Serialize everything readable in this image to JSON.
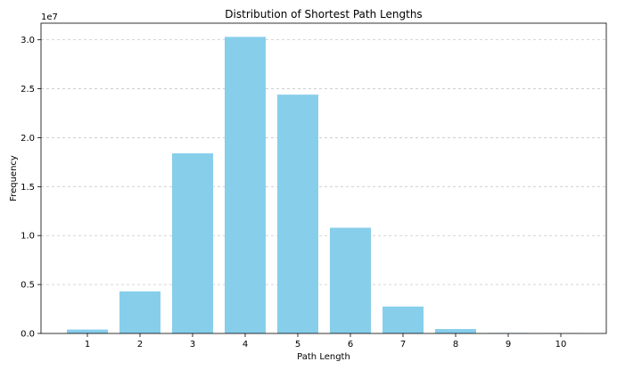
{
  "colors": {
    "bar": "#87CEEB",
    "grid": "#c8c8c8",
    "axis": "#000000"
  },
  "chart_data": {
    "type": "bar",
    "title": "Distribution of Shortest Path Lengths",
    "xlabel": "Path Length",
    "ylabel": "Frequency",
    "y_offset_label": "1e7",
    "categories": [
      "1",
      "2",
      "3",
      "4",
      "5",
      "6",
      "7",
      "8",
      "9",
      "10"
    ],
    "values": [
      400000,
      4300000,
      18400000,
      30300000,
      24400000,
      10800000,
      2750000,
      450000,
      50000,
      5000
    ],
    "ylim": [
      0,
      31700000
    ],
    "yticks": [
      0,
      5000000,
      10000000,
      15000000,
      20000000,
      25000000,
      30000000
    ],
    "ytick_labels": [
      "0.0",
      "0.5",
      "1.0",
      "1.5",
      "2.0",
      "2.5",
      "3.0"
    ],
    "grid": "y-dashed",
    "legend": "none"
  }
}
